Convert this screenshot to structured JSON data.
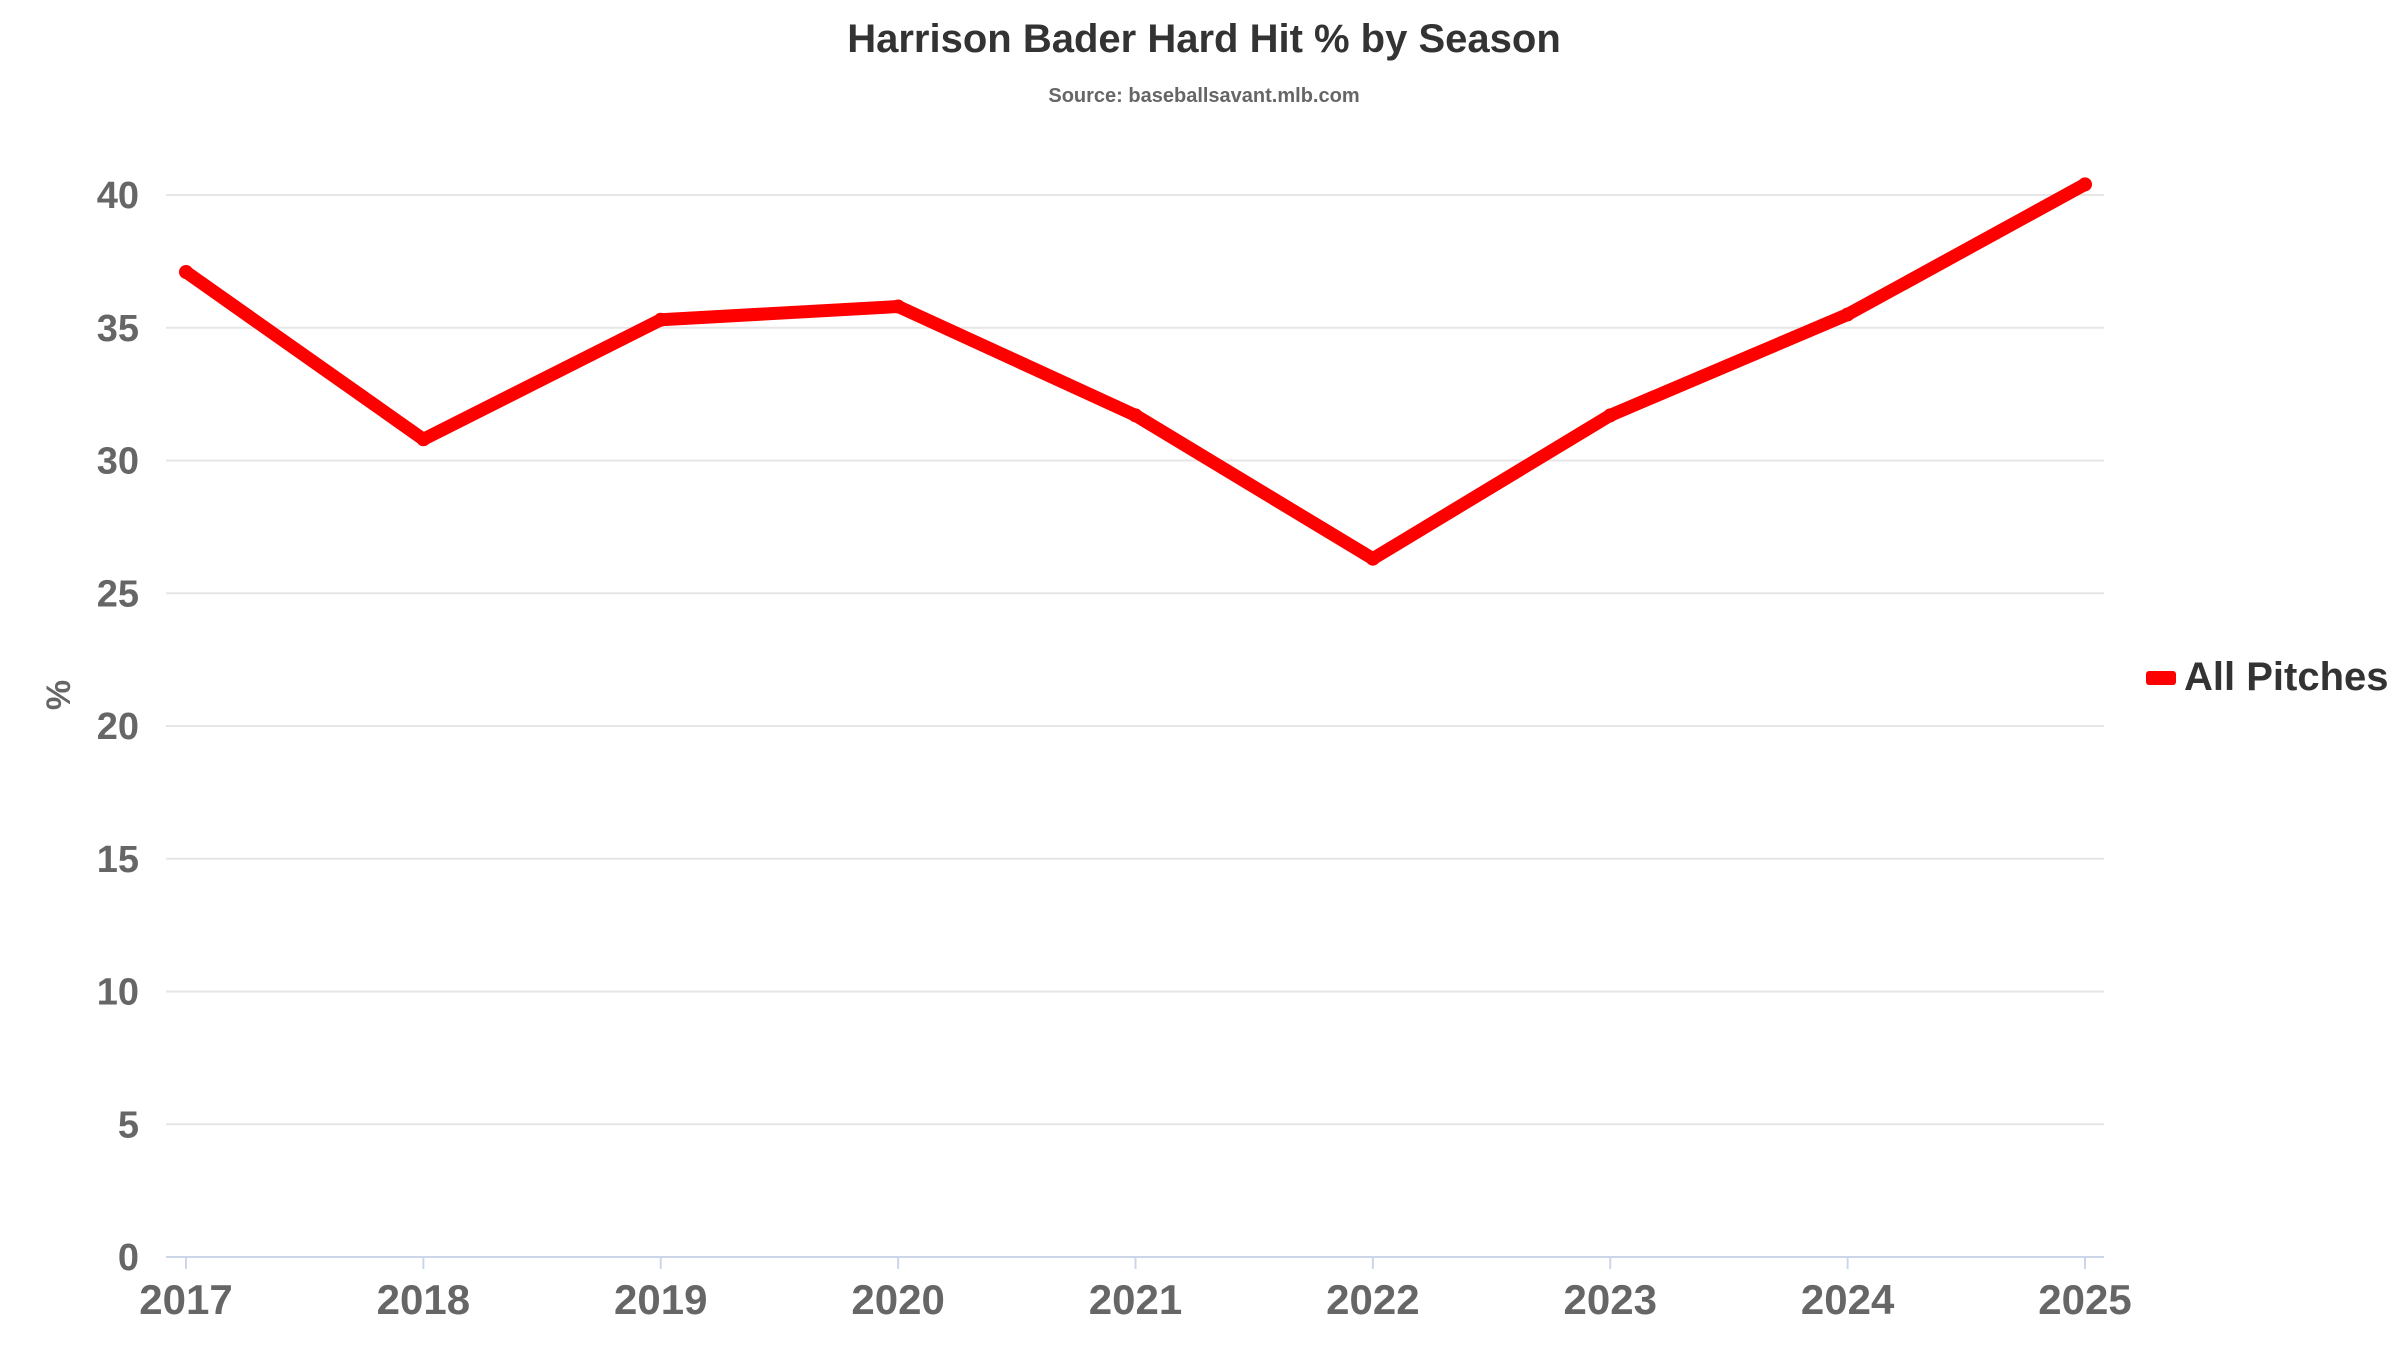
{
  "chart_data": {
    "type": "line",
    "title": "Harrison Bader Hard Hit % by Season",
    "subtitle": "Source: baseballsavant.mlb.com",
    "xlabel": "",
    "ylabel": "%",
    "categories": [
      "2017",
      "2018",
      "2019",
      "2020",
      "2021",
      "2022",
      "2023",
      "2024",
      "2025"
    ],
    "series": [
      {
        "name": "All Pitches",
        "color": "#ff0000",
        "values": [
          37.1,
          30.8,
          35.3,
          35.8,
          31.7,
          26.3,
          31.7,
          35.5,
          40.4
        ]
      }
    ],
    "ylim": [
      0,
      40
    ],
    "yticks": [
      "0",
      "5",
      "10",
      "15",
      "20",
      "25",
      "30",
      "35",
      "40"
    ],
    "grid": true,
    "legend": "right"
  }
}
